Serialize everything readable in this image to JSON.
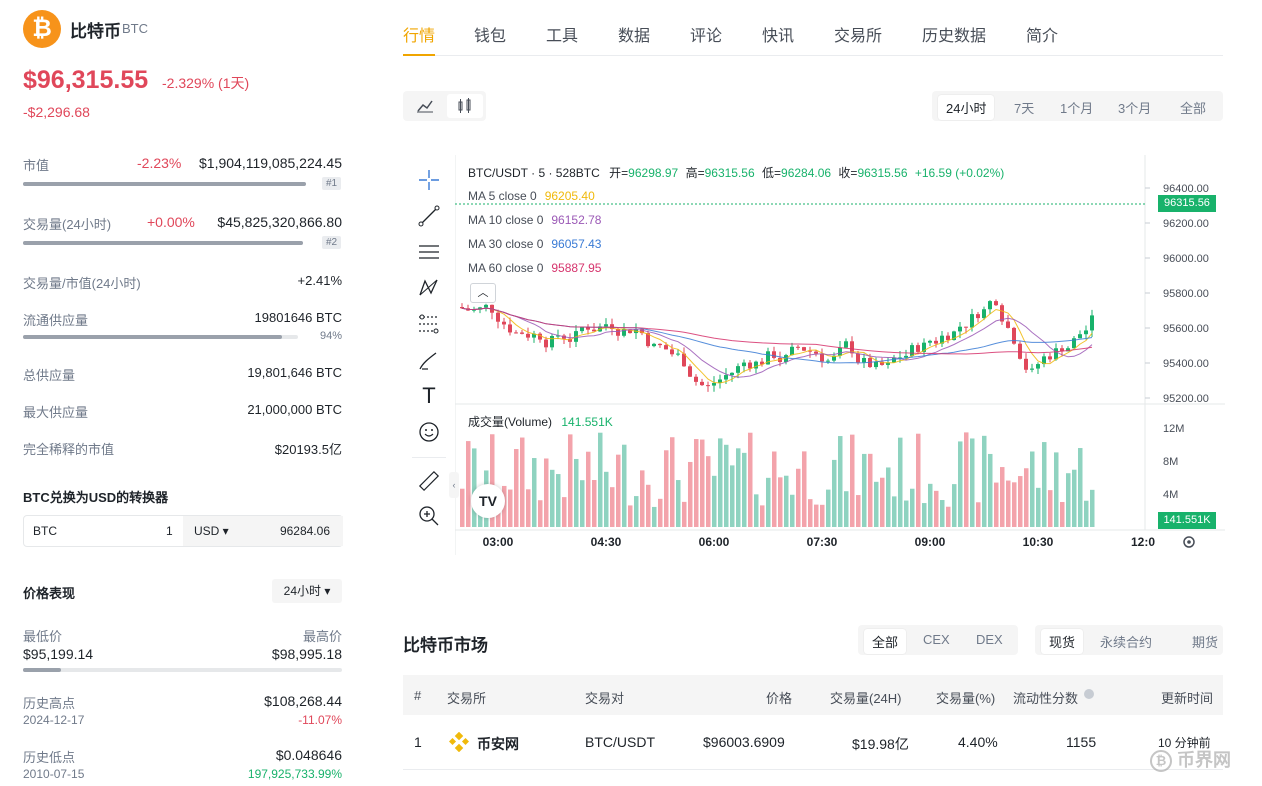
{
  "coin": {
    "name": "比特币",
    "symbol": "BTC",
    "logo_glyph": "₿",
    "accent": "#f7931a"
  },
  "price": {
    "value": "$96,315.55",
    "change_pct": "-2.329% (1天)",
    "change_abs": "-$2,296.68"
  },
  "stats": {
    "market_cap": {
      "label": "市值",
      "change": "-2.23%",
      "value": "$1,904,119,085,224.45",
      "rank": "#1",
      "fill": 1.0
    },
    "volume": {
      "label": "交易量(24小时)",
      "change": "+0.00%",
      "value": "$45,825,320,866.80",
      "rank": "#2",
      "fill": 1.0
    },
    "vol_mcap": {
      "label": "交易量/市值(24小时)",
      "value": "+2.41%"
    },
    "circulating": {
      "label": "流通供应量",
      "value": "19801646 BTC",
      "pct": "94%",
      "fill": 0.94
    },
    "total": {
      "label": "总供应量",
      "value": "19,801,646 BTC"
    },
    "max": {
      "label": "最大供应量",
      "value": "21,000,000 BTC"
    },
    "fdv": {
      "label": "完全稀释的市值",
      "value": "$20193.5亿"
    }
  },
  "converter": {
    "title": "BTC兑换为USD的转换器",
    "from": "BTC",
    "amount": "1",
    "to": "USD ▾",
    "result": "96284.06"
  },
  "performance": {
    "title": "价格表现",
    "range": "24小时 ▾",
    "low_label": "最低价",
    "low": "$95,199.14",
    "high_label": "最高价",
    "high": "$98,995.18",
    "fill": 0.12,
    "ath_label": "历史高点",
    "ath": "$108,268.44",
    "ath_date": "2024-12-17",
    "ath_change": "-11.07%",
    "atl_label": "历史低点",
    "atl": "$0.048646",
    "atl_date": "2010-07-15",
    "atl_change": "197,925,733.99%"
  },
  "tabs": [
    "行情",
    "钱包",
    "工具",
    "数据",
    "评论",
    "快讯",
    "交易所",
    "历史数据",
    "简介"
  ],
  "chart_controls": {
    "line_icon": "line-chart-icon",
    "candle_icon": "candlestick-icon",
    "ranges": [
      "24小时",
      "7天",
      "1个月",
      "3个月",
      "全部"
    ]
  },
  "chart_header": {
    "pair": "BTC/USDT · 5 · 528BTC",
    "open_label": "开=",
    "open": "96298.97",
    "high_label": "高=",
    "high": "96315.56",
    "low_label": "低=",
    "low": "96284.06",
    "close_label": "收=",
    "close": "96315.56",
    "change": "+16.59 (+0.02%)"
  },
  "ma": [
    {
      "label": "MA 5 close 0",
      "value": "96205.40",
      "color": "#f0b90b"
    },
    {
      "label": "MA 10 close 0",
      "value": "96152.78",
      "color": "#9b59b6"
    },
    {
      "label": "MA 30 close 0",
      "value": "96057.43",
      "color": "#3a7bd5"
    },
    {
      "label": "MA 60 close 0",
      "value": "95887.95",
      "color": "#d6336c"
    }
  ],
  "price_axis": [
    "96400.00",
    "96200.00",
    "96000.00",
    "95800.00",
    "95600.00",
    "95400.00",
    "95200.00"
  ],
  "current_price_tag": "96315.56",
  "volume": {
    "label": "成交量(Volume)",
    "value": "141.551K",
    "axis": [
      "12M",
      "8M",
      "4M"
    ],
    "tag": "141.551K"
  },
  "time_axis": [
    "03:00",
    "04:30",
    "06:00",
    "07:30",
    "09:00",
    "10:30",
    "12:0"
  ],
  "market": {
    "title": "比特币市场",
    "filter_a": [
      "全部",
      "CEX",
      "DEX"
    ],
    "filter_b": [
      "现货",
      "永续合约",
      "期货"
    ],
    "headers": [
      "#",
      "交易所",
      "交易对",
      "价格",
      "交易量(24H)",
      "交易量(%)",
      "流动性分数",
      "更新时间"
    ],
    "rows": [
      {
        "rank": "1",
        "exchange": "币安网",
        "pair": "BTC/USDT",
        "price": "$96003.6909",
        "volume": "$19.98亿",
        "share": "4.40%",
        "liquidity": "1155",
        "updated": "10 分钟前"
      }
    ]
  },
  "watermark": "币界网",
  "colors": {
    "up": "#18b26b",
    "down": "#e0475a",
    "up_vol": "#8fd3c0",
    "down_vol": "#f3a3ab"
  }
}
